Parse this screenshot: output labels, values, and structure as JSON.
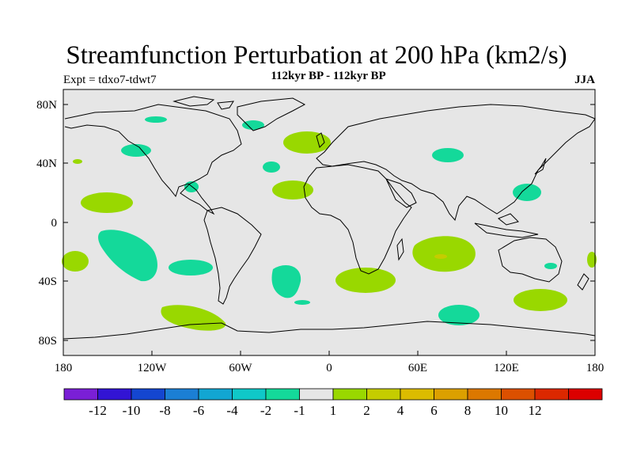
{
  "title": "Streamfunction Perturbation at 200 hPa (km2/s)",
  "subtitle": "112kyr BP - 112kyr BP",
  "experiment": "Expt = tdxo7-tdwt7",
  "season": "JJA",
  "map": {
    "background_color": "#e6e6e6",
    "lat_ticks": [
      "80N",
      "40N",
      "0",
      "40S",
      "80S"
    ],
    "lon_ticks": [
      "180",
      "120W",
      "60W",
      "0",
      "60E",
      "120E",
      "180"
    ]
  },
  "colorbar": {
    "colors": [
      "#7a1fd6",
      "#3214d4",
      "#1446d0",
      "#1b7fd4",
      "#12a6d2",
      "#0fc8c8",
      "#14d99a",
      "#e6e6e6",
      "#99d800",
      "#c5cc00",
      "#dcbc00",
      "#dca000",
      "#dc7800",
      "#dc5000",
      "#dc2800",
      "#dc0000"
    ],
    "labels": [
      "-12",
      "-10",
      "-8",
      "-6",
      "-4",
      "-2",
      "-1",
      "1",
      "2",
      "4",
      "6",
      "8",
      "10",
      "12"
    ]
  }
}
